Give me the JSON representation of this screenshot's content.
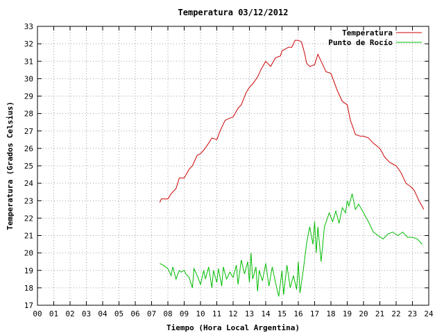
{
  "chart_data": {
    "type": "line",
    "title": "Temperatura 03/12/2012",
    "xlabel": "Tiempo (Hora Local Argentina)",
    "ylabel": "Temperatura (Grados Celsius)",
    "xlim": [
      0,
      24
    ],
    "ylim": [
      17,
      33
    ],
    "x_ticks": [
      "00",
      "01",
      "02",
      "03",
      "04",
      "05",
      "06",
      "07",
      "08",
      "09",
      "10",
      "11",
      "12",
      "13",
      "14",
      "15",
      "16",
      "17",
      "18",
      "19",
      "20",
      "21",
      "22",
      "23",
      "24"
    ],
    "y_ticks": [
      "17",
      "18",
      "19",
      "20",
      "21",
      "22",
      "23",
      "24",
      "25",
      "26",
      "27",
      "28",
      "29",
      "30",
      "31",
      "32",
      "33"
    ],
    "grid": true,
    "legend_position": "top-right",
    "series": [
      {
        "name": "Temperatura",
        "color": "#cc0000",
        "x": [
          7.5,
          7.6,
          8.0,
          8.2,
          8.5,
          8.7,
          9.0,
          9.3,
          9.5,
          9.8,
          10.0,
          10.2,
          10.5,
          10.7,
          11.0,
          11.2,
          11.5,
          11.7,
          12.0,
          12.3,
          12.5,
          12.8,
          13.0,
          13.2,
          13.5,
          13.7,
          14.0,
          14.3,
          14.6,
          14.9,
          15.0,
          15.2,
          15.4,
          15.6,
          15.8,
          16.0,
          16.2,
          16.4,
          16.5,
          16.7,
          17.0,
          17.2,
          17.4,
          17.7,
          18.0,
          18.2,
          18.4,
          18.7,
          19.0,
          19.2,
          19.5,
          19.8,
          20.0,
          20.3,
          20.6,
          21.0,
          21.3,
          21.6,
          22.0,
          22.3,
          22.6,
          22.9,
          23.1,
          23.4,
          23.7
        ],
        "values": [
          22.9,
          23.1,
          23.1,
          23.4,
          23.7,
          24.3,
          24.3,
          24.8,
          25.0,
          25.6,
          25.7,
          25.9,
          26.3,
          26.6,
          26.5,
          27.0,
          27.6,
          27.7,
          27.8,
          28.3,
          28.5,
          29.2,
          29.5,
          29.7,
          30.1,
          30.5,
          31.0,
          30.7,
          31.2,
          31.3,
          31.6,
          31.7,
          31.8,
          31.8,
          32.2,
          32.2,
          32.1,
          31.4,
          30.9,
          30.7,
          30.8,
          31.4,
          31.0,
          30.4,
          30.3,
          29.8,
          29.3,
          28.7,
          28.5,
          27.6,
          26.8,
          26.7,
          26.7,
          26.6,
          26.3,
          26.0,
          25.5,
          25.2,
          25.0,
          24.6,
          24.0,
          23.8,
          23.6,
          23.0,
          22.5
        ]
      },
      {
        "name": "Punto de Rocío",
        "color": "#00bb00",
        "x": [
          7.5,
          7.7,
          8.0,
          8.2,
          8.3,
          8.5,
          8.7,
          8.8,
          9.0,
          9.1,
          9.3,
          9.5,
          9.6,
          9.8,
          10.0,
          10.2,
          10.3,
          10.5,
          10.7,
          10.8,
          11.0,
          11.1,
          11.3,
          11.4,
          11.6,
          11.8,
          12.0,
          12.2,
          12.3,
          12.5,
          12.7,
          12.9,
          13.0,
          13.1,
          13.2,
          13.4,
          13.5,
          13.6,
          13.8,
          14.0,
          14.2,
          14.4,
          14.6,
          14.8,
          15.0,
          15.1,
          15.3,
          15.5,
          15.7,
          15.9,
          16.0,
          16.1,
          16.3,
          16.5,
          16.7,
          16.9,
          17.0,
          17.1,
          17.2,
          17.4,
          17.6,
          17.9,
          18.1,
          18.3,
          18.5,
          18.7,
          18.9,
          19.0,
          19.1,
          19.3,
          19.5,
          19.7,
          20.0,
          20.3,
          20.6,
          20.9,
          21.2,
          21.5,
          21.8,
          22.1,
          22.4,
          22.7,
          23.0,
          23.3,
          23.6
        ],
        "values": [
          19.4,
          19.3,
          19.1,
          18.7,
          19.2,
          18.5,
          19.0,
          18.9,
          19.0,
          18.8,
          18.6,
          18.0,
          19.1,
          18.7,
          18.2,
          19.0,
          18.5,
          19.2,
          18.0,
          19.0,
          18.3,
          19.1,
          18.1,
          19.2,
          18.5,
          18.9,
          18.6,
          19.3,
          18.2,
          19.6,
          18.8,
          19.5,
          18.3,
          20.0,
          18.5,
          19.2,
          17.8,
          19.0,
          18.4,
          19.4,
          18.1,
          19.2,
          18.3,
          17.5,
          19.0,
          17.6,
          19.3,
          18.0,
          18.7,
          17.9,
          19.5,
          17.7,
          19.0,
          20.5,
          21.5,
          20.5,
          21.8,
          20.0,
          21.5,
          19.5,
          21.5,
          22.3,
          21.8,
          22.4,
          21.7,
          22.6,
          22.3,
          23.0,
          22.7,
          23.4,
          22.5,
          22.8,
          22.3,
          21.8,
          21.2,
          21.0,
          20.8,
          21.1,
          21.2,
          21.0,
          21.2,
          20.9,
          20.9,
          20.8,
          20.5
        ]
      }
    ]
  }
}
